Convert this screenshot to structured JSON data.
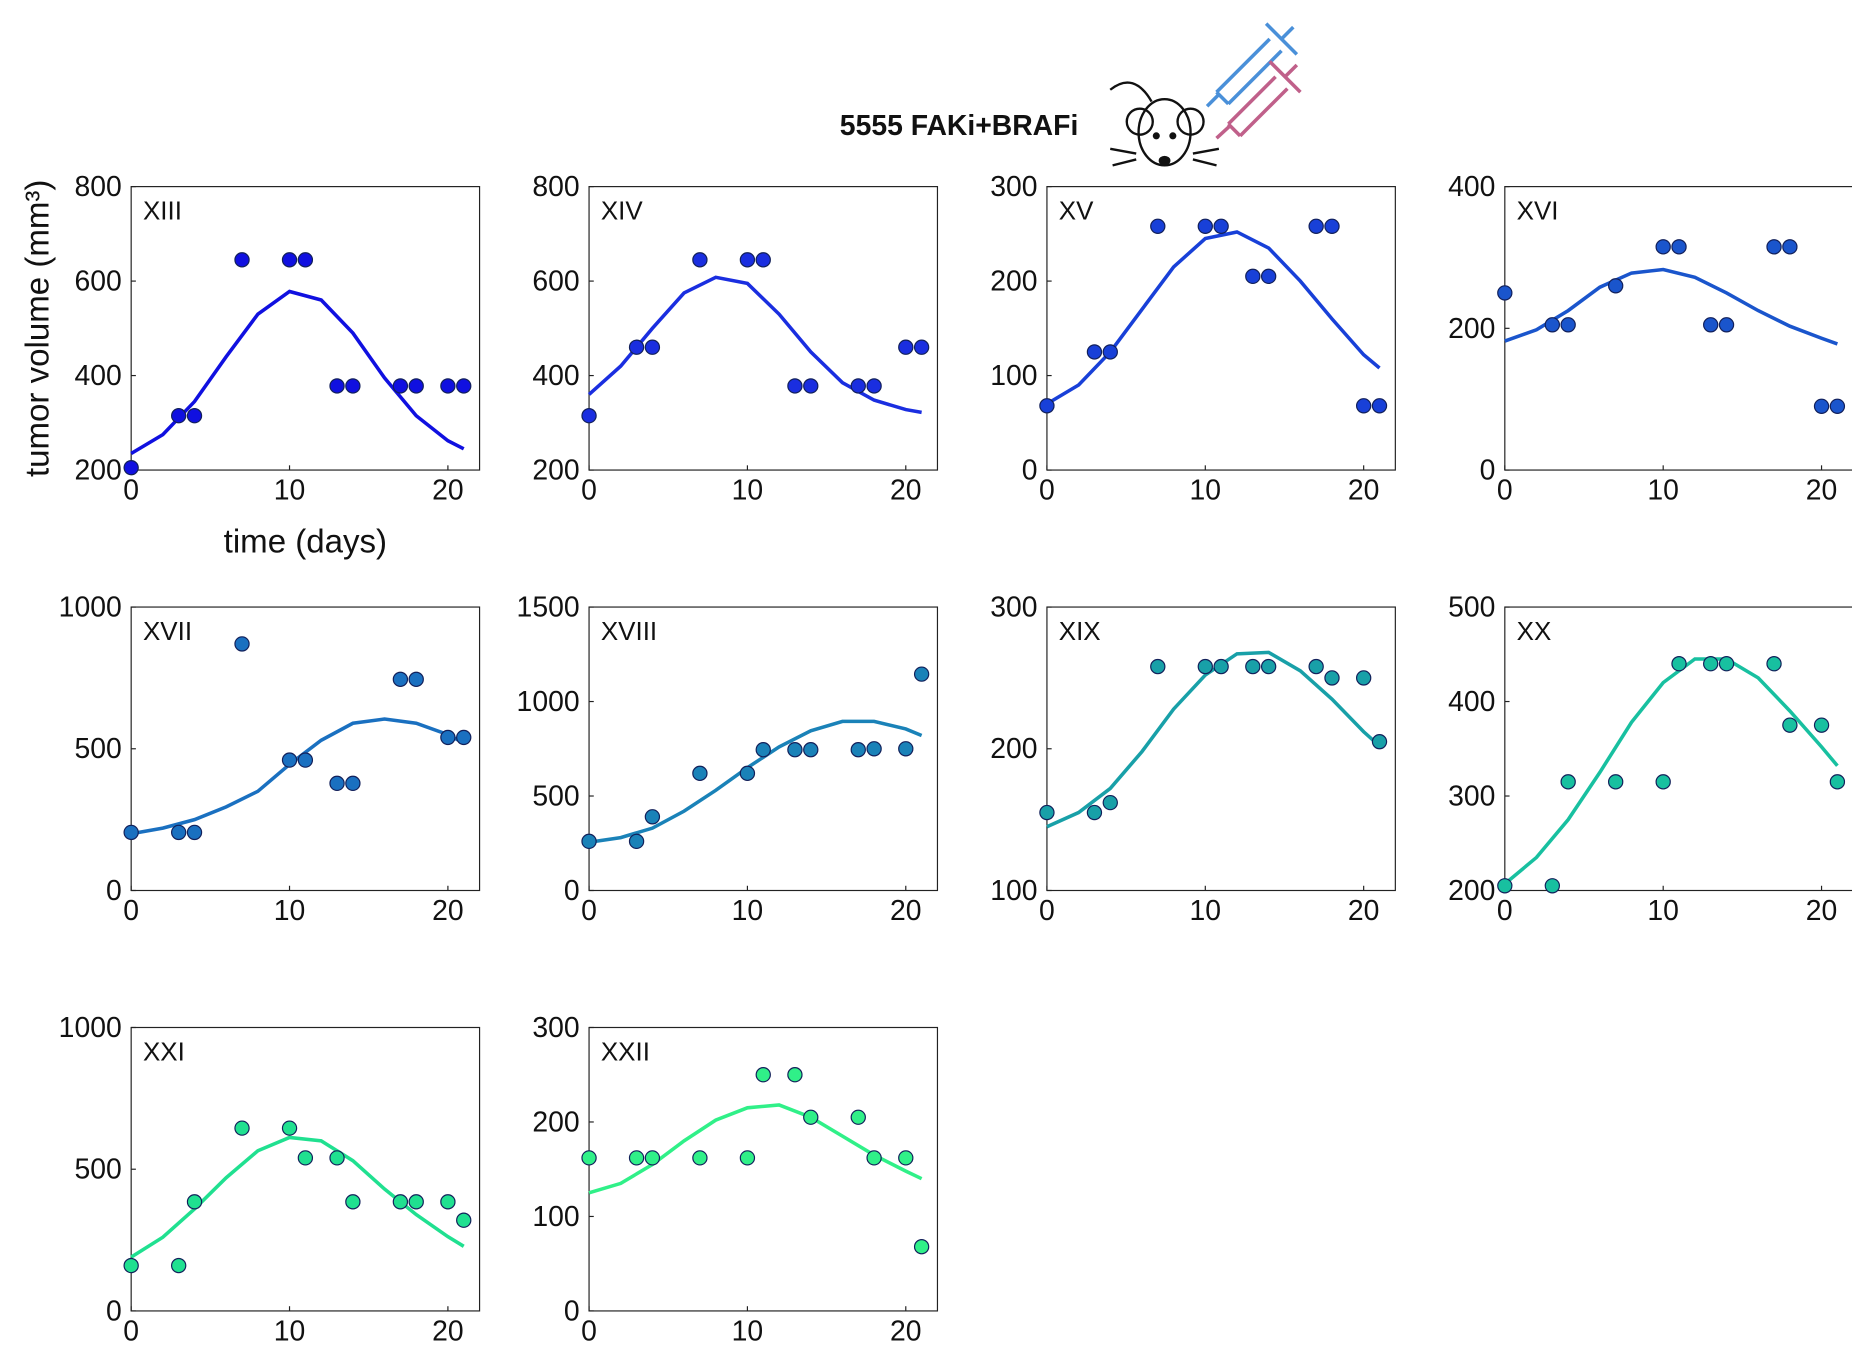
{
  "chart_data": [
    {
      "type": "scatter",
      "title": "5555 FAKi+BRAFi",
      "ylabel": "tumor volume (mm³)",
      "xlabel": "time (days)",
      "annotation": "XIII",
      "xlim": [
        0,
        22
      ],
      "xticks": [
        0,
        10,
        20
      ],
      "ylim": [
        200,
        800
      ],
      "yticks": [
        200,
        400,
        600,
        800
      ],
      "series": [
        {
          "type": "scatter",
          "color": "#1010e0",
          "x": [
            0,
            3,
            4,
            7,
            10,
            11,
            13,
            14,
            17,
            18,
            20,
            21
          ],
          "values": [
            205,
            315,
            315,
            645,
            645,
            645,
            378,
            378,
            378,
            378,
            378,
            378
          ]
        },
        {
          "type": "line",
          "color": "#1010e0",
          "x": [
            0,
            2,
            4,
            6,
            8,
            10,
            12,
            14,
            16,
            18,
            20,
            21
          ],
          "values": [
            235,
            275,
            345,
            440,
            530,
            578,
            560,
            490,
            395,
            315,
            262,
            245
          ]
        }
      ]
    },
    {
      "type": "scatter",
      "annotation": "XIV",
      "xlim": [
        0,
        22
      ],
      "xticks": [
        0,
        10,
        20
      ],
      "ylim": [
        200,
        800
      ],
      "yticks": [
        200,
        400,
        600,
        800
      ],
      "series": [
        {
          "type": "scatter",
          "color": "#1a2ee0",
          "x": [
            0,
            3,
            4,
            7,
            10,
            11,
            13,
            14,
            17,
            18,
            20,
            21
          ],
          "values": [
            315,
            460,
            460,
            645,
            645,
            645,
            378,
            378,
            378,
            378,
            460,
            460
          ]
        },
        {
          "type": "line",
          "color": "#1a2ee0",
          "x": [
            0,
            2,
            4,
            6,
            8,
            10,
            12,
            14,
            16,
            18,
            20,
            21
          ],
          "values": [
            360,
            420,
            500,
            575,
            608,
            595,
            530,
            450,
            385,
            348,
            328,
            322
          ]
        }
      ]
    },
    {
      "type": "scatter",
      "annotation": "XV",
      "xlim": [
        0,
        22
      ],
      "xticks": [
        0,
        10,
        20
      ],
      "ylim": [
        0,
        300
      ],
      "yticks": [
        0,
        100,
        200,
        300
      ],
      "series": [
        {
          "type": "scatter",
          "color": "#1840d8",
          "x": [
            0,
            3,
            4,
            7,
            10,
            11,
            13,
            14,
            17,
            18,
            20,
            21
          ],
          "values": [
            68,
            125,
            125,
            258,
            258,
            258,
            205,
            205,
            258,
            258,
            68,
            68
          ]
        },
        {
          "type": "line",
          "color": "#1840d8",
          "x": [
            0,
            2,
            4,
            6,
            8,
            10,
            12,
            14,
            16,
            18,
            20,
            21
          ],
          "values": [
            70,
            90,
            125,
            170,
            215,
            245,
            252,
            235,
            200,
            160,
            122,
            108
          ]
        }
      ]
    },
    {
      "type": "scatter",
      "annotation": "XVI",
      "xlim": [
        0,
        22
      ],
      "xticks": [
        0,
        10,
        20
      ],
      "ylim": [
        0,
        400
      ],
      "yticks": [
        0,
        200,
        400
      ],
      "series": [
        {
          "type": "scatter",
          "color": "#1a55cc",
          "x": [
            0,
            3,
            4,
            7,
            10,
            11,
            13,
            14,
            17,
            18,
            20,
            21
          ],
          "values": [
            250,
            205,
            205,
            260,
            315,
            315,
            205,
            205,
            315,
            315,
            90,
            90
          ]
        },
        {
          "type": "line",
          "color": "#1a55cc",
          "x": [
            0,
            2,
            4,
            6,
            8,
            10,
            12,
            14,
            16,
            18,
            20,
            21
          ],
          "values": [
            182,
            198,
            225,
            258,
            278,
            283,
            272,
            250,
            225,
            203,
            186,
            178
          ]
        }
      ]
    },
    {
      "type": "scatter",
      "annotation": "XVII",
      "xlim": [
        0,
        22
      ],
      "xticks": [
        0,
        10,
        20
      ],
      "ylim": [
        0,
        1000
      ],
      "yticks": [
        0,
        500,
        1000
      ],
      "series": [
        {
          "type": "scatter",
          "color": "#1a70c0",
          "x": [
            0,
            3,
            4,
            7,
            10,
            11,
            13,
            14,
            17,
            18,
            20,
            21
          ],
          "values": [
            205,
            205,
            205,
            870,
            460,
            460,
            378,
            378,
            745,
            745,
            540,
            540
          ]
        },
        {
          "type": "line",
          "color": "#1a70c0",
          "x": [
            0,
            2,
            4,
            6,
            8,
            10,
            12,
            14,
            16,
            18,
            20,
            21
          ],
          "values": [
            200,
            220,
            250,
            295,
            350,
            445,
            530,
            590,
            605,
            590,
            550,
            520
          ]
        }
      ]
    },
    {
      "type": "scatter",
      "annotation": "XVIII",
      "xlim": [
        0,
        22
      ],
      "xticks": [
        0,
        10,
        20
      ],
      "ylim": [
        0,
        1500
      ],
      "yticks": [
        0,
        500,
        1000,
        1500
      ],
      "series": [
        {
          "type": "scatter",
          "color": "#1a82b8",
          "x": [
            0,
            3,
            4,
            7,
            10,
            11,
            13,
            14,
            17,
            18,
            20,
            21
          ],
          "values": [
            260,
            260,
            390,
            620,
            620,
            745,
            745,
            745,
            745,
            750,
            750,
            1145
          ]
        },
        {
          "type": "line",
          "color": "#1a82b8",
          "x": [
            0,
            2,
            4,
            6,
            8,
            10,
            12,
            14,
            16,
            18,
            20,
            21
          ],
          "values": [
            255,
            280,
            330,
            420,
            530,
            650,
            760,
            845,
            895,
            895,
            855,
            820
          ]
        }
      ]
    },
    {
      "type": "scatter",
      "annotation": "XIX",
      "xlim": [
        0,
        22
      ],
      "xticks": [
        0,
        10,
        20
      ],
      "ylim": [
        100,
        300
      ],
      "yticks": [
        100,
        200,
        300
      ],
      "series": [
        {
          "type": "scatter",
          "color": "#18a0a8",
          "x": [
            0,
            3,
            4,
            7,
            10,
            11,
            13,
            14,
            17,
            18,
            20,
            21
          ],
          "values": [
            155,
            155,
            162,
            258,
            258,
            258,
            258,
            258,
            258,
            250,
            250,
            205
          ]
        },
        {
          "type": "line",
          "color": "#18a0a8",
          "x": [
            0,
            2,
            4,
            6,
            8,
            10,
            12,
            14,
            16,
            18,
            20,
            21
          ],
          "values": [
            145,
            155,
            172,
            198,
            228,
            252,
            267,
            268,
            255,
            235,
            212,
            202
          ]
        }
      ]
    },
    {
      "type": "scatter",
      "annotation": "XX",
      "xlim": [
        0,
        22
      ],
      "xticks": [
        0,
        10,
        20
      ],
      "ylim": [
        200,
        500
      ],
      "yticks": [
        200,
        300,
        400,
        500
      ],
      "series": [
        {
          "type": "scatter",
          "color": "#18c0a0",
          "x": [
            0,
            3,
            4,
            7,
            10,
            11,
            13,
            14,
            17,
            18,
            20,
            21
          ],
          "values": [
            205,
            205,
            315,
            315,
            315,
            440,
            440,
            440,
            440,
            375,
            375,
            315
          ]
        },
        {
          "type": "line",
          "color": "#18c0a0",
          "x": [
            0,
            2,
            4,
            6,
            8,
            10,
            12,
            14,
            16,
            18,
            20,
            21
          ],
          "values": [
            207,
            235,
            275,
            325,
            378,
            420,
            445,
            445,
            425,
            390,
            352,
            332
          ]
        }
      ]
    },
    {
      "type": "scatter",
      "annotation": "XXI",
      "xlim": [
        0,
        22
      ],
      "xticks": [
        0,
        10,
        20
      ],
      "ylim": [
        0,
        1000
      ],
      "yticks": [
        0,
        500,
        1000
      ],
      "series": [
        {
          "type": "scatter",
          "color": "#20e090",
          "x": [
            0,
            3,
            4,
            7,
            10,
            11,
            13,
            14,
            17,
            18,
            20,
            21
          ],
          "values": [
            160,
            160,
            385,
            645,
            645,
            540,
            540,
            385,
            385,
            385,
            385,
            320
          ]
        },
        {
          "type": "line",
          "color": "#20e090",
          "x": [
            0,
            2,
            4,
            6,
            8,
            10,
            12,
            14,
            16,
            18,
            20,
            21
          ],
          "values": [
            190,
            260,
            360,
            470,
            565,
            612,
            600,
            530,
            430,
            340,
            262,
            228
          ]
        }
      ]
    },
    {
      "type": "scatter",
      "annotation": "XXII",
      "xlim": [
        0,
        22
      ],
      "xticks": [
        0,
        10,
        20
      ],
      "ylim": [
        0,
        300
      ],
      "yticks": [
        0,
        100,
        200,
        300
      ],
      "series": [
        {
          "type": "scatter",
          "color": "#30f088",
          "x": [
            0,
            3,
            4,
            7,
            10,
            11,
            13,
            14,
            17,
            18,
            20,
            21
          ],
          "values": [
            162,
            162,
            162,
            162,
            162,
            250,
            250,
            205,
            205,
            162,
            162,
            68
          ]
        },
        {
          "type": "line",
          "color": "#30f088",
          "x": [
            0,
            2,
            4,
            6,
            8,
            10,
            12,
            14,
            16,
            18,
            20,
            21
          ],
          "values": [
            125,
            135,
            155,
            180,
            202,
            215,
            218,
            205,
            185,
            165,
            148,
            140
          ]
        }
      ]
    }
  ]
}
